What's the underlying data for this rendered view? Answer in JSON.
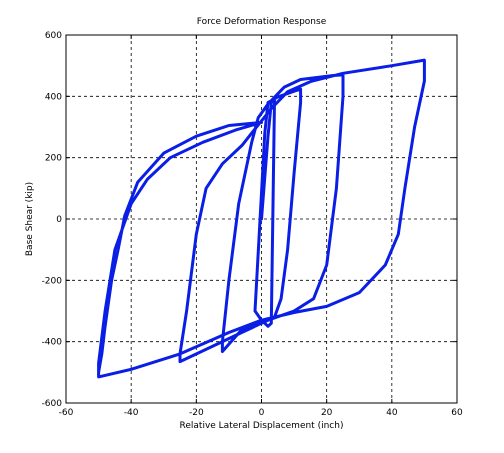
{
  "chart_data": {
    "type": "line",
    "title": "Force Deformation Response",
    "xlabel": "Relative Lateral Displacement (inch)",
    "ylabel": "Base Shear (kip)",
    "xlim": [
      -60,
      60
    ],
    "ylim": [
      -600,
      600
    ],
    "x_ticks": [
      -60,
      -40,
      -20,
      0,
      20,
      40,
      60
    ],
    "y_ticks": [
      -600,
      -400,
      -200,
      0,
      200,
      400,
      600
    ],
    "x_tick_labels": [
      "-60",
      "-40",
      "-20",
      "0",
      "20",
      "40",
      "60"
    ],
    "y_tick_labels": [
      "-600",
      "-400",
      "-200",
      "0",
      "200",
      "400",
      "600"
    ],
    "grid": true,
    "grid_style": "dashed",
    "line_color": "#0a1ee6",
    "series": [
      {
        "values": [
          [
            0,
            0
          ],
          [
            2,
            270
          ],
          [
            3,
            380
          ],
          [
            4,
            388
          ],
          [
            3,
            -340
          ],
          [
            2,
            -350
          ],
          [
            0,
            -330
          ],
          [
            -2,
            -300
          ],
          [
            1,
            280
          ],
          [
            2,
            380
          ],
          [
            5,
            398
          ],
          [
            12,
            424
          ],
          [
            12,
            380
          ],
          [
            10,
            150
          ],
          [
            8,
            -100
          ],
          [
            6,
            -260
          ],
          [
            4,
            -320
          ],
          [
            0,
            -340
          ],
          [
            -6,
            -360
          ],
          [
            -12,
            -432
          ],
          [
            -12,
            -400
          ],
          [
            -10,
            -200
          ],
          [
            -7,
            50
          ],
          [
            -3,
            250
          ],
          [
            -1,
            330
          ],
          [
            2,
            375
          ],
          [
            7,
            430
          ],
          [
            12,
            455
          ],
          [
            22,
            468
          ],
          [
            25,
            470
          ],
          [
            25,
            400
          ],
          [
            23,
            100
          ],
          [
            20,
            -150
          ],
          [
            16,
            -260
          ],
          [
            10,
            -300
          ],
          [
            2,
            -330
          ],
          [
            -8,
            -380
          ],
          [
            -18,
            -430
          ],
          [
            -25,
            -465
          ],
          [
            -25,
            -440
          ],
          [
            -23,
            -300
          ],
          [
            -20,
            -50
          ],
          [
            -17,
            100
          ],
          [
            -12,
            180
          ],
          [
            -6,
            240
          ],
          [
            -3,
            280
          ],
          [
            0,
            320
          ],
          [
            3,
            360
          ],
          [
            8,
            415
          ],
          [
            15,
            448
          ],
          [
            25,
            475
          ],
          [
            40,
            500
          ],
          [
            50,
            518
          ],
          [
            50,
            450
          ],
          [
            47,
            300
          ],
          [
            44,
            100
          ],
          [
            42,
            -50
          ],
          [
            38,
            -150
          ],
          [
            30,
            -240
          ],
          [
            20,
            -285
          ],
          [
            10,
            -305
          ],
          [
            0,
            -330
          ],
          [
            -10,
            -370
          ],
          [
            -25,
            -440
          ],
          [
            -40,
            -490
          ],
          [
            -50,
            -515
          ],
          [
            -50,
            -470
          ],
          [
            -48,
            -300
          ],
          [
            -45,
            -100
          ],
          [
            -40,
            50
          ],
          [
            -35,
            130
          ],
          [
            -28,
            200
          ],
          [
            -18,
            250
          ],
          [
            -8,
            290
          ],
          [
            0,
            315
          ],
          [
            -10,
            305
          ],
          [
            -20,
            270
          ],
          [
            -30,
            215
          ],
          [
            -38,
            120
          ],
          [
            -42,
            10
          ],
          [
            -44,
            -100
          ],
          [
            -46,
            -200
          ],
          [
            -48,
            -350
          ],
          [
            -49,
            -440
          ],
          [
            -50,
            -500
          ]
        ]
      }
    ]
  }
}
